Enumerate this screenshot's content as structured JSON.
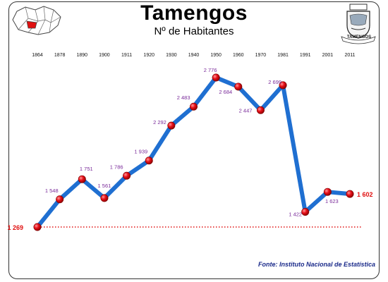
{
  "title": "Tamengos",
  "subtitle": "Nº de Habitantes",
  "source": "Fonte: Instituto Nacional de Estatística",
  "emblem_caption": "TAMENGOS",
  "colors": {
    "line": "#1f6fd1",
    "marker": "#e8101a",
    "label": "#7a2b9a",
    "end_label": "#e01010",
    "reference": "#e01010"
  },
  "chart_data": {
    "type": "line",
    "categories": [
      "1864",
      "1878",
      "1890",
      "1900",
      "1911",
      "1920",
      "1930",
      "1940",
      "1950",
      "1960",
      "1970",
      "1981",
      "1991",
      "2001",
      "2011"
    ],
    "series": [
      {
        "values": [
          1269,
          1548,
          1751,
          1561,
          1786,
          1939,
          2292,
          2483,
          2776,
          2684,
          2447,
          2699,
          1422,
          1623,
          1602
        ]
      }
    ],
    "labels": [
      "1 269",
      "1 548",
      "1 751",
      "1 561",
      "1 786",
      "1 939",
      "2 292",
      "2 483",
      "2 776",
      "2 684",
      "2 447",
      "2 699",
      "1 422",
      "1 623",
      "1 602"
    ],
    "reference_line": 1269,
    "grid": false,
    "legend": false
  }
}
